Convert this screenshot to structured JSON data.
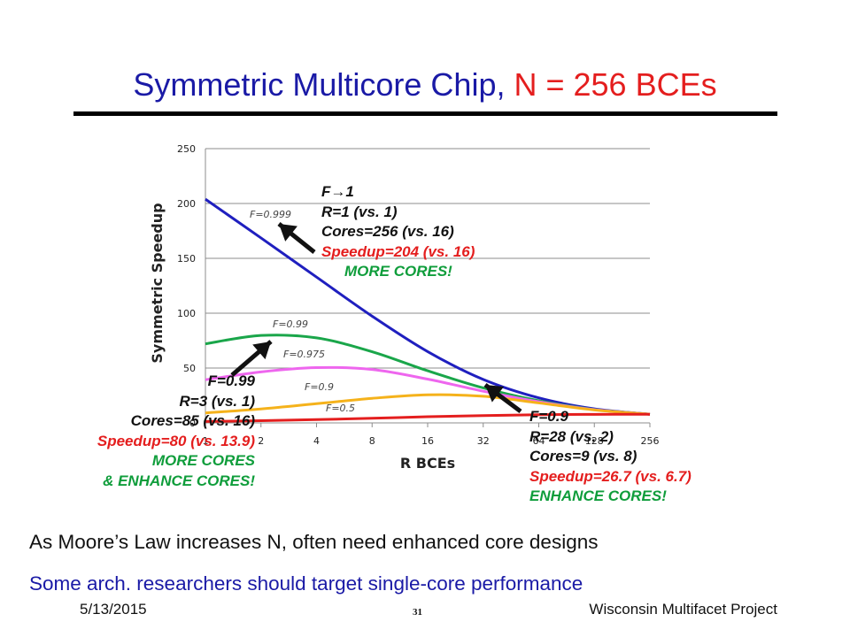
{
  "title": {
    "text": "Symmetric Multicore Chip, ",
    "highlight": "N = 256 BCEs"
  },
  "chart_data": {
    "type": "line",
    "xlabel": "R BCEs",
    "ylabel": "Symmetric Speedup",
    "x": [
      1,
      2,
      4,
      8,
      16,
      32,
      64,
      128,
      256
    ],
    "x_scale": "log2",
    "xticks": [
      "1",
      "2",
      "4",
      "8",
      "16",
      "32",
      "64",
      "128",
      "256"
    ],
    "ylim": [
      0,
      250
    ],
    "yticks": [
      "0",
      "50",
      "100",
      "150",
      "200",
      "250"
    ],
    "grid": "horizontal",
    "legend": "none",
    "series": [
      {
        "name": "F=0.999",
        "color": "#1f1fbf",
        "values": [
          203.9,
          168.6,
          132.9,
          97.3,
          65.0,
          39.6,
          22.8,
          12.8,
          7.9
        ]
      },
      {
        "name": "F=0.99",
        "color": "#1aa64a",
        "values": [
          72.1,
          79.7,
          77.5,
          64.9,
          47.5,
          31.9,
          20.2,
          12.2,
          7.9
        ]
      },
      {
        "name": "F=0.975",
        "color": "#ee66ee",
        "values": [
          39.3,
          46.5,
          50.4,
          48.7,
          39.9,
          28.9,
          19.3,
          12.1,
          7.9
        ]
      },
      {
        "name": "F=0.9",
        "color": "#f5b21b",
        "values": [
          9.1,
          12.7,
          17.5,
          22.4,
          25.6,
          24.3,
          18.2,
          11.8,
          7.9
        ]
      },
      {
        "name": "F=0.5",
        "color": "#e41e1e",
        "values": [
          1.3,
          2.0,
          3.0,
          4.2,
          5.6,
          6.7,
          7.5,
          7.8,
          7.9
        ]
      }
    ]
  },
  "annotations": {
    "left": {
      "lines": [
        "F=0.99",
        "R=3 (vs. 1)",
        "Cores=85 (vs. 16)",
        "Speedup=80 (vs. 13.9)",
        "MORE CORES",
        "& ENHANCE CORES!"
      ]
    },
    "top": {
      "f_label": "F",
      "f_arrow": "→",
      "f_value": "1",
      "lines": [
        "R=1 (vs. 1)",
        "Cores=256 (vs. 16)",
        "Speedup=204 (vs. 16)",
        "MORE CORES!"
      ]
    },
    "right": {
      "lines": [
        "F=0.9",
        "R=28 (vs. 2)",
        "Cores=9 (vs. 8)",
        "Speedup=26.7 (vs. 6.7)",
        "ENHANCE CORES!"
      ]
    }
  },
  "bullets": [
    "As Moore’s Law increases N, often need enhanced core designs",
    "Some arch. researchers should target single-core performance"
  ],
  "footer": {
    "date": "5/13/2015",
    "page": "31",
    "org": "Wisconsin Multifacet Project"
  }
}
